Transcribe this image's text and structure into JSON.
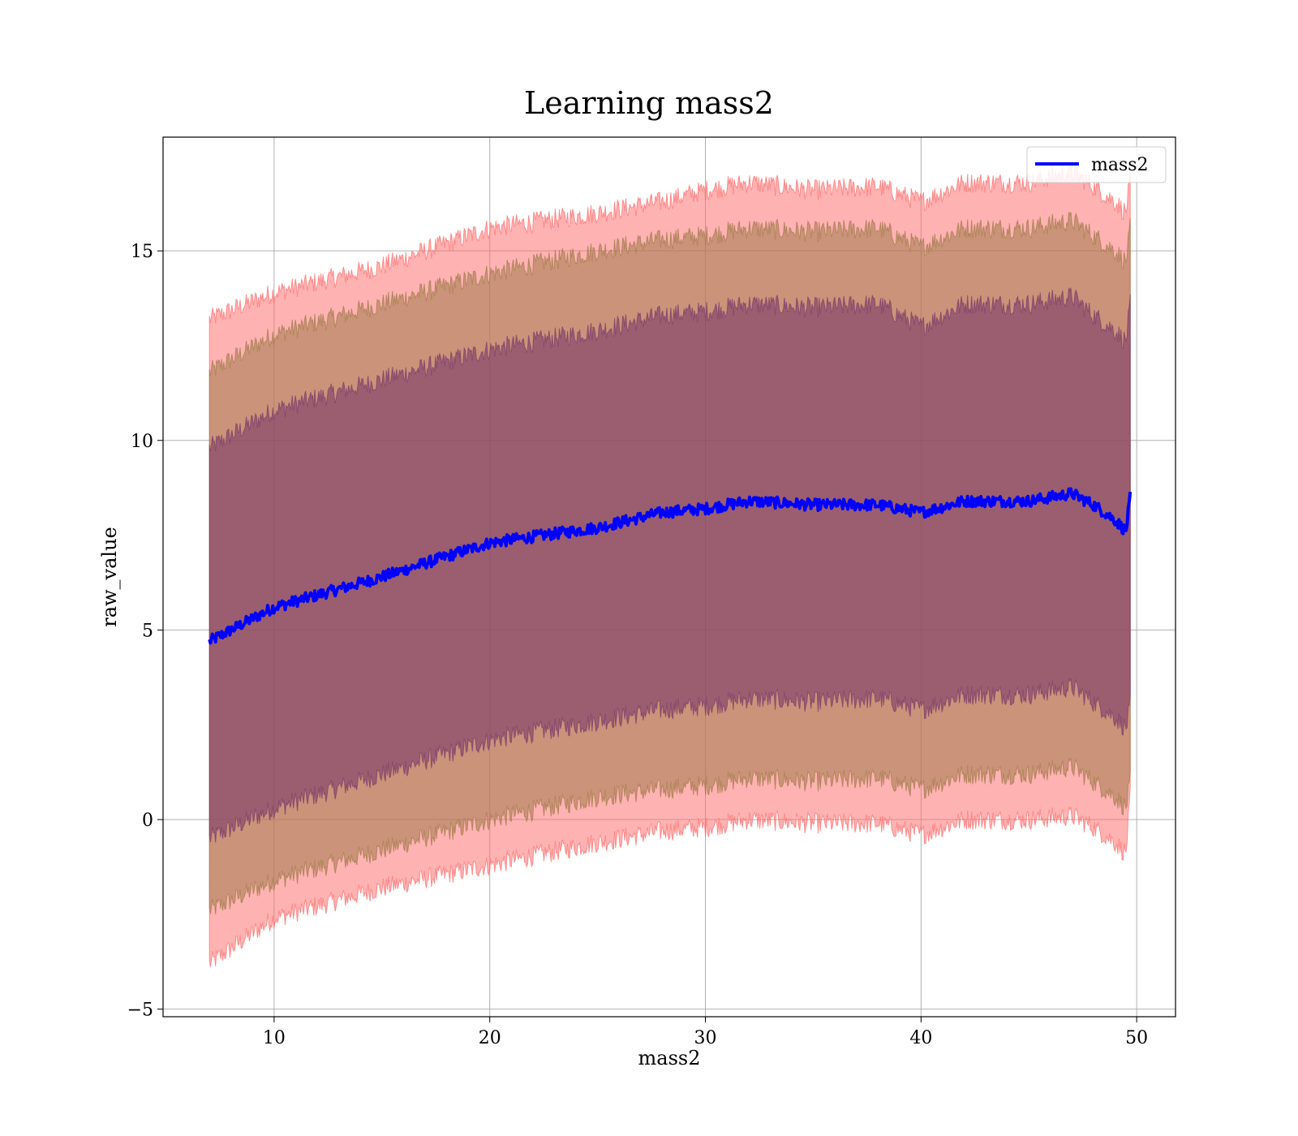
{
  "chart_data": {
    "type": "area",
    "title": "Learning mass2",
    "xlabel": "mass2",
    "ylabel": "raw_value",
    "xlim": [
      4.85,
      51.8
    ],
    "ylim": [
      -5.2,
      18.0
    ],
    "xticks": [
      10,
      20,
      30,
      40,
      50
    ],
    "yticks": [
      -5,
      0,
      5,
      10,
      15
    ],
    "grid": true,
    "legend": {
      "placement": "top-right",
      "entries": [
        "mass2"
      ]
    },
    "colors": {
      "mean_line": "#0000ff",
      "band_3sigma": "#ff6b6b",
      "band_2sigma": "#a07a4a",
      "band_1sigma": "#7a3a6a"
    },
    "x": [
      7.0,
      10.0,
      15.0,
      20.0,
      25.0,
      28.0,
      30.0,
      32.0,
      35.0,
      38.0,
      40.0,
      42.0,
      45.0,
      47.0,
      48.0,
      49.0,
      49.5,
      49.7
    ],
    "series": [
      {
        "name": "mass2",
        "values": [
          4.7,
          5.6,
          6.4,
          7.3,
          7.7,
          8.1,
          8.2,
          8.4,
          8.3,
          8.3,
          8.1,
          8.4,
          8.4,
          8.6,
          8.3,
          7.9,
          7.6,
          8.5
        ]
      }
    ],
    "bands": [
      {
        "level": "3-sigma",
        "lower": [
          -3.8,
          -2.6,
          -1.8,
          -1.2,
          -0.6,
          -0.3,
          -0.2,
          0.0,
          -0.1,
          -0.1,
          -0.4,
          0.0,
          0.0,
          0.1,
          -0.2,
          -0.6,
          -0.9,
          0.6
        ],
        "upper": [
          13.2,
          13.9,
          14.6,
          15.6,
          16.0,
          16.3,
          16.6,
          16.8,
          16.6,
          16.7,
          16.3,
          16.8,
          16.8,
          17.1,
          16.7,
          16.3,
          16.0,
          16.9
        ]
      },
      {
        "level": "2-sigma",
        "lower": [
          -2.4,
          -1.6,
          -0.8,
          0.0,
          0.6,
          0.8,
          0.9,
          1.1,
          1.0,
          1.1,
          0.8,
          1.2,
          1.2,
          1.4,
          1.0,
          0.6,
          0.3,
          1.0
        ],
        "upper": [
          11.8,
          12.8,
          13.6,
          14.4,
          15.0,
          15.3,
          15.4,
          15.6,
          15.5,
          15.6,
          15.1,
          15.6,
          15.6,
          15.8,
          15.4,
          15.0,
          14.7,
          15.6
        ]
      },
      {
        "level": "1-sigma",
        "lower": [
          -0.5,
          0.3,
          1.2,
          2.1,
          2.6,
          2.9,
          3.0,
          3.2,
          3.1,
          3.2,
          2.9,
          3.3,
          3.3,
          3.5,
          3.1,
          2.7,
          2.4,
          3.0
        ],
        "upper": [
          9.8,
          10.8,
          11.6,
          12.4,
          12.9,
          13.3,
          13.4,
          13.6,
          13.5,
          13.6,
          13.0,
          13.6,
          13.6,
          13.8,
          13.3,
          12.9,
          12.6,
          13.6
        ]
      }
    ]
  }
}
